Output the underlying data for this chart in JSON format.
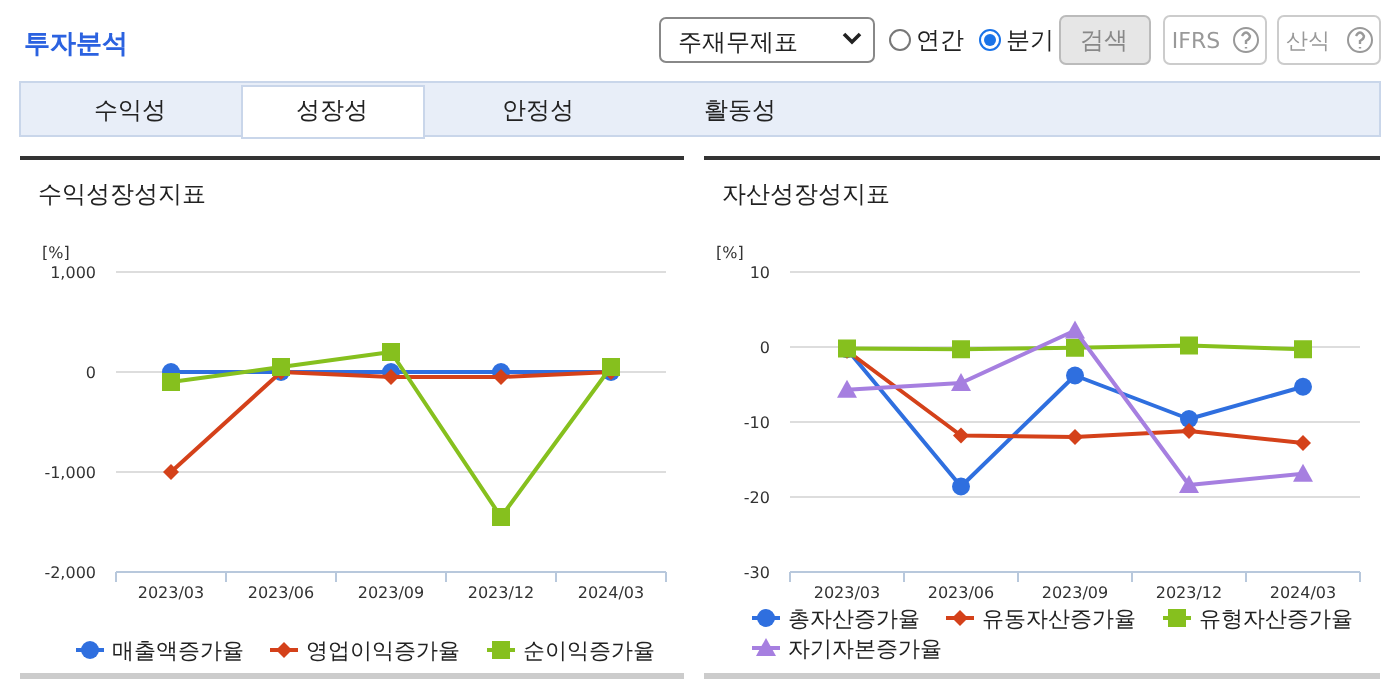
{
  "chart_data": [
    {
      "type": "other",
      "title": "투자분석",
      "annotations": [
        "주재무제표",
        "연간",
        "분기",
        "검색",
        "IFRS",
        "산식",
        "수익성",
        "성장성",
        "안정성",
        "활동성"
      ]
    },
    {
      "type": "line",
      "title": "수익성장성지표",
      "ylabel": "[%]",
      "categories": [
        "2023/03",
        "2023/06",
        "2023/09",
        "2023/12",
        "2024/03"
      ],
      "ylim": [
        -2000,
        1000
      ],
      "yticks": [
        {
          "value": -2000,
          "label": "-2,000"
        },
        {
          "value": -1000,
          "label": "-1,000"
        },
        0,
        {
          "value": 1000,
          "label": "1,000"
        }
      ],
      "grid": "y",
      "legend": "bottom",
      "series": [
        {
          "name": "매출액증가율",
          "color": "#2f6fdf",
          "marker": "circle",
          "values": [
            0,
            0,
            0,
            0,
            0
          ]
        },
        {
          "name": "영업이익증가율",
          "color": "#d4411a",
          "marker": "diamond",
          "values": [
            -1000,
            0,
            -50,
            -50,
            0
          ]
        },
        {
          "name": "순이익증가율",
          "color": "#86c01e",
          "marker": "square",
          "values": [
            -100,
            50,
            200,
            -1450,
            50
          ]
        }
      ]
    },
    {
      "type": "line",
      "title": "자산성장성지표",
      "ylabel": "[%]",
      "categories": [
        "2023/03",
        "2023/06",
        "2023/09",
        "2023/12",
        "2024/03"
      ],
      "ylim": [
        -30,
        10
      ],
      "yticks": [
        -30,
        -20,
        -10,
        0,
        10
      ],
      "grid": "y",
      "legend": "bottom",
      "series": [
        {
          "name": "총자산증가율",
          "color": "#2f6fdf",
          "marker": "circle",
          "values": [
            -0.3,
            -18.6,
            -3.8,
            -9.6,
            -5.3
          ]
        },
        {
          "name": "유동자산증가율",
          "color": "#d4411a",
          "marker": "diamond",
          "values": [
            -0.5,
            -11.8,
            -12.0,
            -11.2,
            -12.8
          ]
        },
        {
          "name": "유형자산증가율",
          "color": "#86c01e",
          "marker": "square",
          "values": [
            -0.2,
            -0.3,
            -0.1,
            0.2,
            -0.3
          ]
        },
        {
          "name": "자기자본증가율",
          "color": "#a67fe0",
          "marker": "triangle",
          "values": [
            -5.7,
            -4.8,
            2.2,
            -18.4,
            -16.9
          ]
        }
      ]
    }
  ]
}
